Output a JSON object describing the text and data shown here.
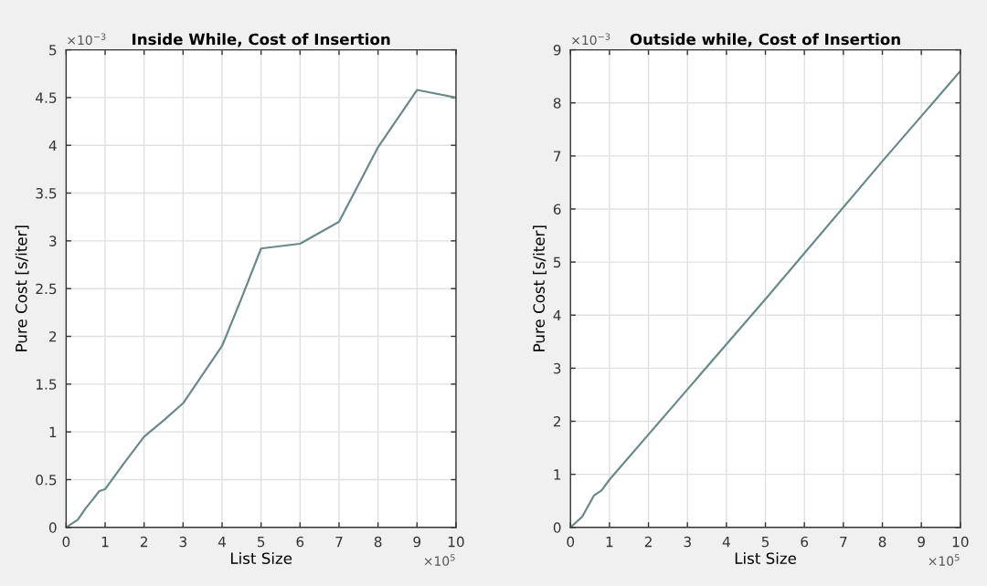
{
  "chart_data": [
    {
      "type": "line",
      "title": "Inside While, Cost of Insertion",
      "xlabel": "List Size",
      "ylabel": "Pure Cost [s/iter]",
      "x": [
        0,
        0.3,
        0.5,
        0.7,
        0.85,
        1,
        1.5,
        2,
        2.5,
        3,
        3.5,
        4,
        4.5,
        5,
        6,
        7,
        8,
        9,
        10
      ],
      "series": [
        {
          "color": "#6a8a8a",
          "values": [
            0,
            0.08,
            0.2,
            0.3,
            0.38,
            0.4,
            0.68,
            0.95,
            1.12,
            1.3,
            1.6,
            1.9,
            2.4,
            2.92,
            2.97,
            3.2,
            3.98,
            4.58,
            4.5
          ]
        }
      ],
      "xlim": [
        0,
        10
      ],
      "xticks": [
        0,
        1,
        2,
        3,
        4,
        5,
        6,
        7,
        8,
        9,
        10
      ],
      "ylim": [
        0,
        5
      ],
      "yticks": [
        0,
        0.5,
        1,
        1.5,
        2,
        2.5,
        3,
        3.5,
        4,
        4.5,
        5
      ],
      "grid": true,
      "annotations": [
        "×10$^{−3}$",
        "×10$^{5}$"
      ]
    },
    {
      "type": "line",
      "title": "Outside while, Cost of Insertion",
      "xlabel": "List Size",
      "ylabel": "Pure Cost [s/iter]",
      "x": [
        0,
        0.3,
        0.6,
        0.8,
        1,
        3,
        5,
        8,
        10
      ],
      "series": [
        {
          "color": "#6a8a8a",
          "values": [
            0,
            0.2,
            0.6,
            0.7,
            0.9,
            2.6,
            4.3,
            6.9,
            8.6
          ]
        }
      ],
      "xlim": [
        0,
        10
      ],
      "xticks": [
        0,
        1,
        2,
        3,
        4,
        5,
        6,
        7,
        8,
        9,
        10
      ],
      "ylim": [
        0,
        9
      ],
      "yticks": [
        0,
        1,
        2,
        3,
        4,
        5,
        6,
        7,
        8,
        9
      ],
      "grid": true,
      "annotations": [
        "×10$^{−3}$",
        "×10$^{5}$"
      ]
    }
  ]
}
